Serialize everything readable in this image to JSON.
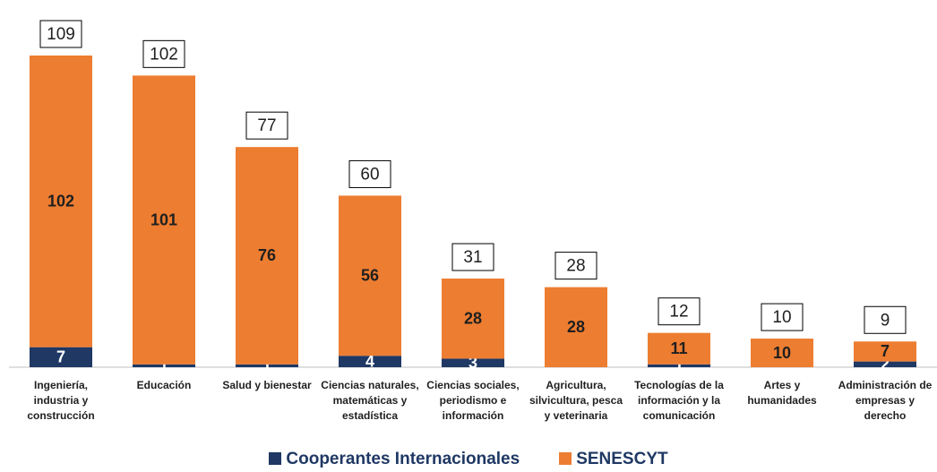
{
  "chart_data": {
    "type": "stacked-bar",
    "categories": [
      "Ingeniería, industria y construcción",
      "Educación",
      "Salud y bienestar",
      "Ciencias naturales, matemáticas y estadística",
      "Ciencias sociales, periodismo e información",
      "Agricultura, silvicultura, pesca y veterinaria",
      "Tecnologías de la información y la comunicación",
      "Artes y humanidades",
      "Administración de empresas y derecho"
    ],
    "series": [
      {
        "name": "Cooperantes Internacionales",
        "color": "#1f3864",
        "values": [
          7,
          1,
          1,
          4,
          3,
          0,
          1,
          0,
          2
        ]
      },
      {
        "name": "SENESCYT",
        "color": "#ed7d31",
        "values": [
          102,
          101,
          76,
          56,
          28,
          28,
          11,
          10,
          7
        ]
      }
    ],
    "totals": [
      109,
      102,
      77,
      60,
      31,
      28,
      12,
      10,
      9
    ],
    "legend": "bottom"
  }
}
